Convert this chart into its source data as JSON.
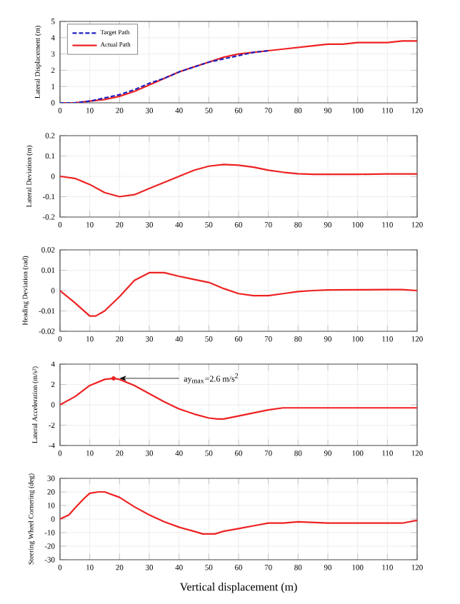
{
  "chart_data": [
    {
      "type": "line",
      "ylabel": "Lateral Displacement (m)",
      "xlim": [
        0,
        120
      ],
      "xticks": [
        0,
        10,
        20,
        30,
        40,
        50,
        60,
        70,
        80,
        90,
        100,
        110,
        120
      ],
      "ylim": [
        0,
        5
      ],
      "yticks": [
        0,
        1,
        2,
        3,
        4,
        5
      ],
      "grid": true,
      "legend": "top left",
      "x": [
        0,
        5,
        10,
        15,
        20,
        25,
        30,
        35,
        40,
        45,
        50,
        55,
        60,
        65,
        70,
        75,
        80,
        85,
        90,
        95,
        100,
        105,
        110,
        115,
        120
      ],
      "series": [
        {
          "name": "Target Path",
          "color": "#2020c0",
          "line_style": "dashed",
          "values": [
            0,
            0,
            0.1,
            0.3,
            0.5,
            0.8,
            1.2,
            1.5,
            1.9,
            2.2,
            2.5,
            2.7,
            2.9,
            3.1,
            3.2,
            null,
            null,
            null,
            null,
            null,
            null,
            null,
            null,
            null,
            null
          ]
        },
        {
          "name": "Actual Path",
          "color": "#ee2222",
          "line_style": "solid",
          "values": [
            0,
            0,
            0.1,
            0.2,
            0.4,
            0.7,
            1.1,
            1.5,
            1.9,
            2.2,
            2.5,
            2.8,
            3.0,
            3.1,
            3.2,
            3.3,
            3.4,
            3.5,
            3.6,
            3.6,
            3.7,
            3.7,
            3.7,
            3.8,
            3.8
          ]
        }
      ]
    },
    {
      "type": "line",
      "ylabel": "Lateral Deviation (m)",
      "xlim": [
        0,
        120
      ],
      "xticks": [
        0,
        10,
        20,
        30,
        40,
        50,
        60,
        70,
        80,
        90,
        100,
        110,
        120
      ],
      "ylim": [
        -0.2,
        0.2
      ],
      "yticks": [
        -0.2,
        -0.1,
        0,
        0.1,
        0.2
      ],
      "grid": true,
      "x": [
        0,
        5,
        10,
        15,
        20,
        25,
        30,
        35,
        40,
        45,
        50,
        55,
        60,
        65,
        70,
        75,
        80,
        85,
        90,
        100,
        110,
        120
      ],
      "series": [
        {
          "color": "#ee2222",
          "values": [
            0,
            -0.01,
            -0.04,
            -0.08,
            -0.1,
            -0.09,
            -0.06,
            -0.03,
            0,
            0.03,
            0.05,
            0.058,
            0.055,
            0.045,
            0.03,
            0.02,
            0.013,
            0.01,
            0.01,
            0.01,
            0.012,
            0.012
          ]
        }
      ]
    },
    {
      "type": "line",
      "ylabel": "Heading Deviation (rad)",
      "xlim": [
        0,
        120
      ],
      "xticks": [
        0,
        10,
        20,
        30,
        40,
        50,
        60,
        70,
        80,
        90,
        100,
        110,
        120
      ],
      "ylim": [
        -0.02,
        0.02
      ],
      "yticks": [
        -0.02,
        -0.01,
        0,
        0.01,
        0.02
      ],
      "grid": true,
      "x": [
        0,
        5,
        10,
        12,
        15,
        20,
        25,
        30,
        35,
        40,
        45,
        50,
        55,
        60,
        65,
        70,
        75,
        80,
        85,
        90,
        100,
        110,
        115,
        120
      ],
      "series": [
        {
          "color": "#ee2222",
          "values": [
            0,
            -0.006,
            -0.0125,
            -0.0125,
            -0.01,
            -0.003,
            0.005,
            0.0088,
            0.0088,
            0.007,
            0.0055,
            0.004,
            0.001,
            -0.0015,
            -0.0025,
            -0.0025,
            -0.0015,
            -0.0005,
            0,
            0.0003,
            0.0004,
            0.0005,
            0.0005,
            0
          ]
        }
      ]
    },
    {
      "type": "line",
      "ylabel": "Lateral Acceleration (m/s²)",
      "xlim": [
        0,
        120
      ],
      "xticks": [
        0,
        10,
        20,
        30,
        40,
        50,
        60,
        70,
        80,
        90,
        100,
        110,
        120
      ],
      "ylim": [
        -4,
        4
      ],
      "yticks": [
        -4,
        -2,
        0,
        2,
        4
      ],
      "grid": true,
      "x": [
        0,
        5,
        10,
        15,
        18,
        20,
        25,
        30,
        35,
        40,
        45,
        50,
        53,
        55,
        60,
        65,
        70,
        75,
        80,
        90,
        100,
        110,
        120
      ],
      "annotations": [
        {
          "text": "ay$_{max}$=2.6 m/s$^{2}$",
          "x": 18,
          "y": 2.6
        }
      ],
      "series": [
        {
          "color": "#ee2222",
          "values": [
            0,
            0.8,
            1.9,
            2.5,
            2.6,
            2.5,
            1.9,
            1.1,
            0.3,
            -0.4,
            -0.9,
            -1.3,
            -1.4,
            -1.4,
            -1.1,
            -0.8,
            -0.5,
            -0.3,
            -0.3,
            -0.3,
            -0.3,
            -0.3,
            -0.3
          ]
        },
        {
          "type": "scatter",
          "marker": "circle",
          "color": "#ee2222",
          "x": [
            18
          ],
          "values": [
            2.6
          ]
        }
      ]
    },
    {
      "type": "line",
      "ylabel": "Steering Wheel Cornering (deg)",
      "xlabel": "Vertical displacement (m)",
      "xlim": [
        0,
        120
      ],
      "xticks": [
        0,
        10,
        20,
        30,
        40,
        50,
        60,
        70,
        80,
        90,
        100,
        110,
        120
      ],
      "ylim": [
        -30,
        30
      ],
      "yticks": [
        -30,
        -20,
        -10,
        0,
        10,
        20,
        30
      ],
      "grid": true,
      "x": [
        0,
        3,
        5,
        8,
        10,
        13,
        15,
        20,
        25,
        30,
        35,
        40,
        45,
        48,
        52,
        55,
        60,
        65,
        70,
        75,
        80,
        90,
        100,
        110,
        115,
        120
      ],
      "series": [
        {
          "color": "#ee2222",
          "values": [
            0,
            3,
            8,
            15,
            19,
            20,
            20,
            16,
            9,
            3,
            -2,
            -6,
            -9,
            -11,
            -11,
            -9,
            -7,
            -5,
            -3,
            -3,
            -2,
            -3,
            -3,
            -3,
            -3,
            -1
          ]
        }
      ]
    }
  ]
}
